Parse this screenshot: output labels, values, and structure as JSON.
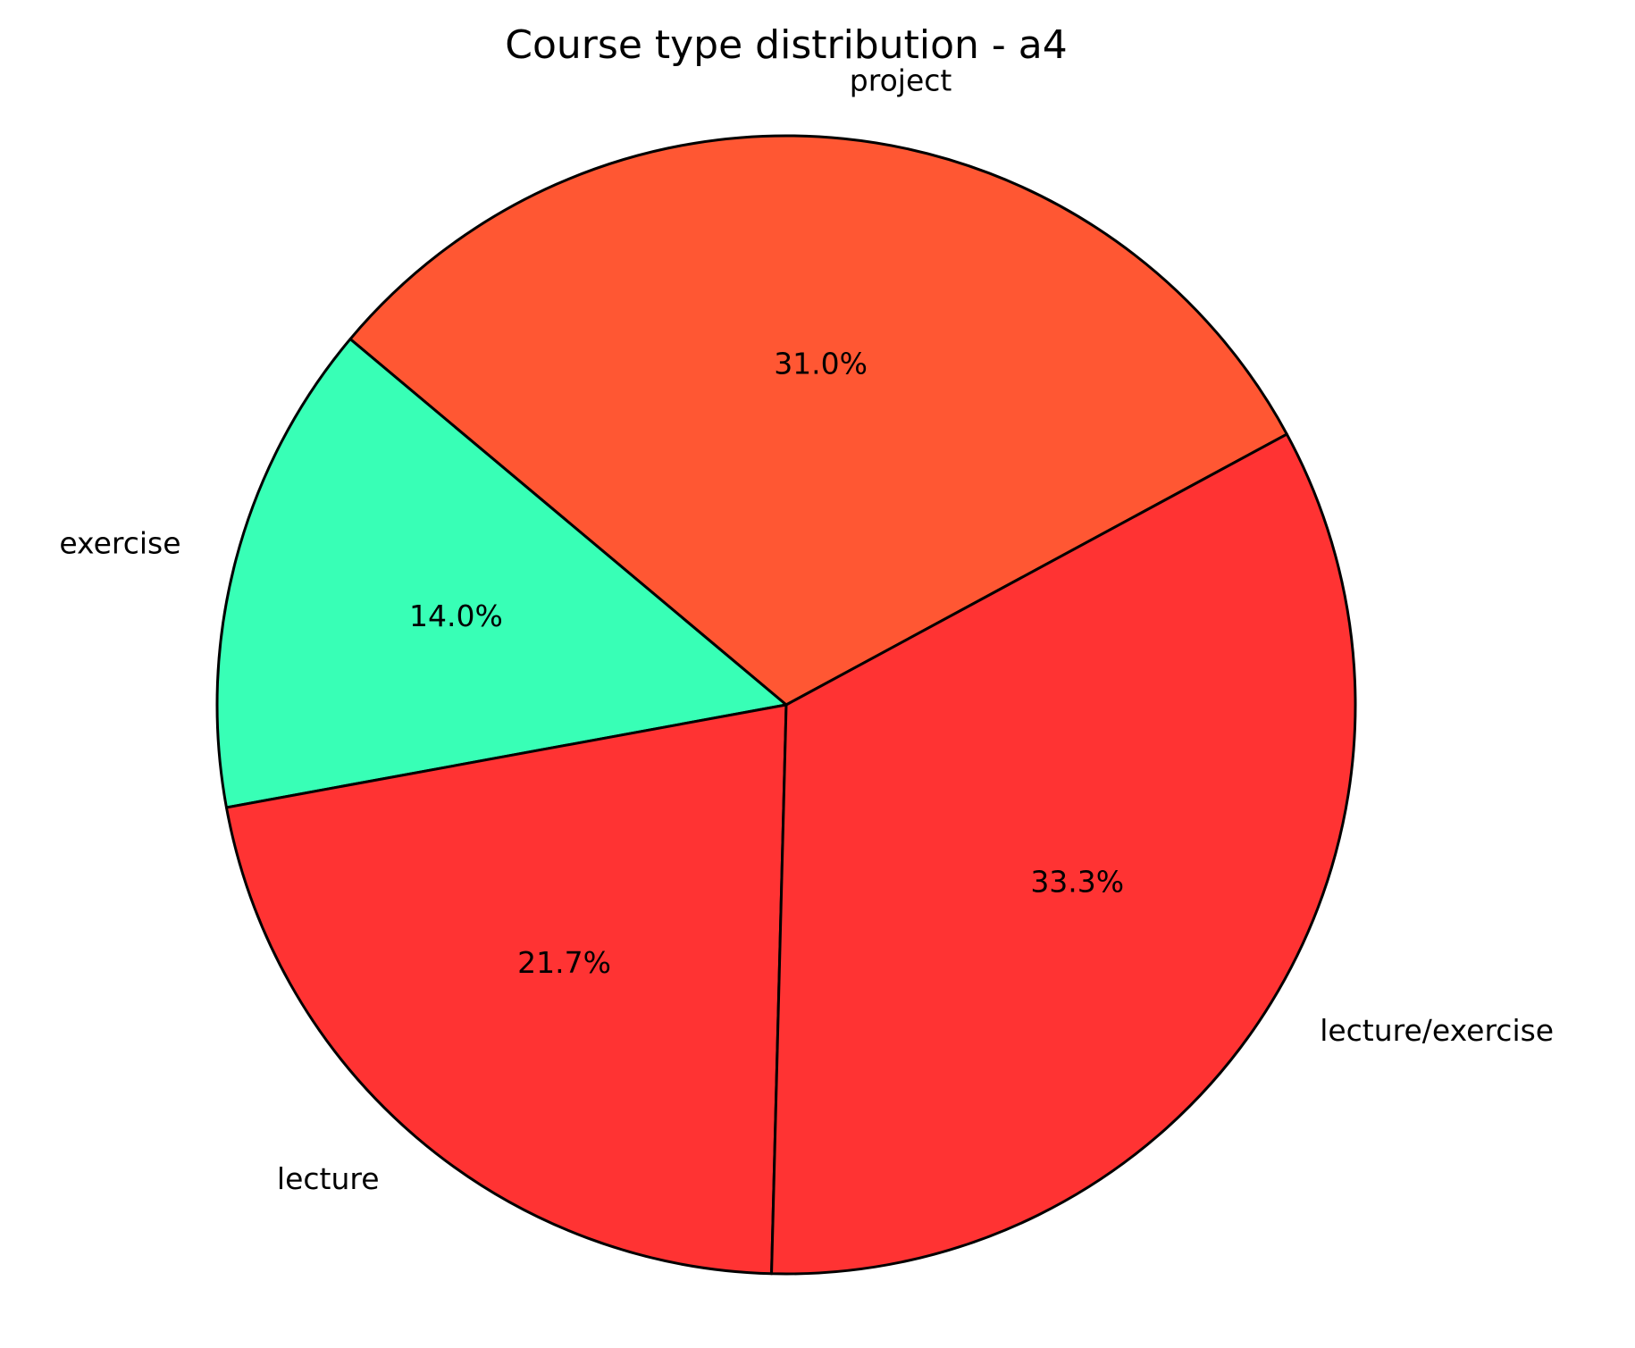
{
  "chart_data": {
    "type": "pie",
    "title": "Course type distribution - a4",
    "categories": [
      "project",
      "exercise",
      "lecture",
      "lecture/exercise"
    ],
    "values": [
      31.0,
      14.0,
      21.7,
      33.3
    ],
    "value_labels": [
      "31.0%",
      "14.0%",
      "21.7%",
      "33.3%"
    ],
    "colors": [
      "#ff5733",
      "#38ffb6",
      "#ff3333",
      "#ff3333"
    ]
  }
}
